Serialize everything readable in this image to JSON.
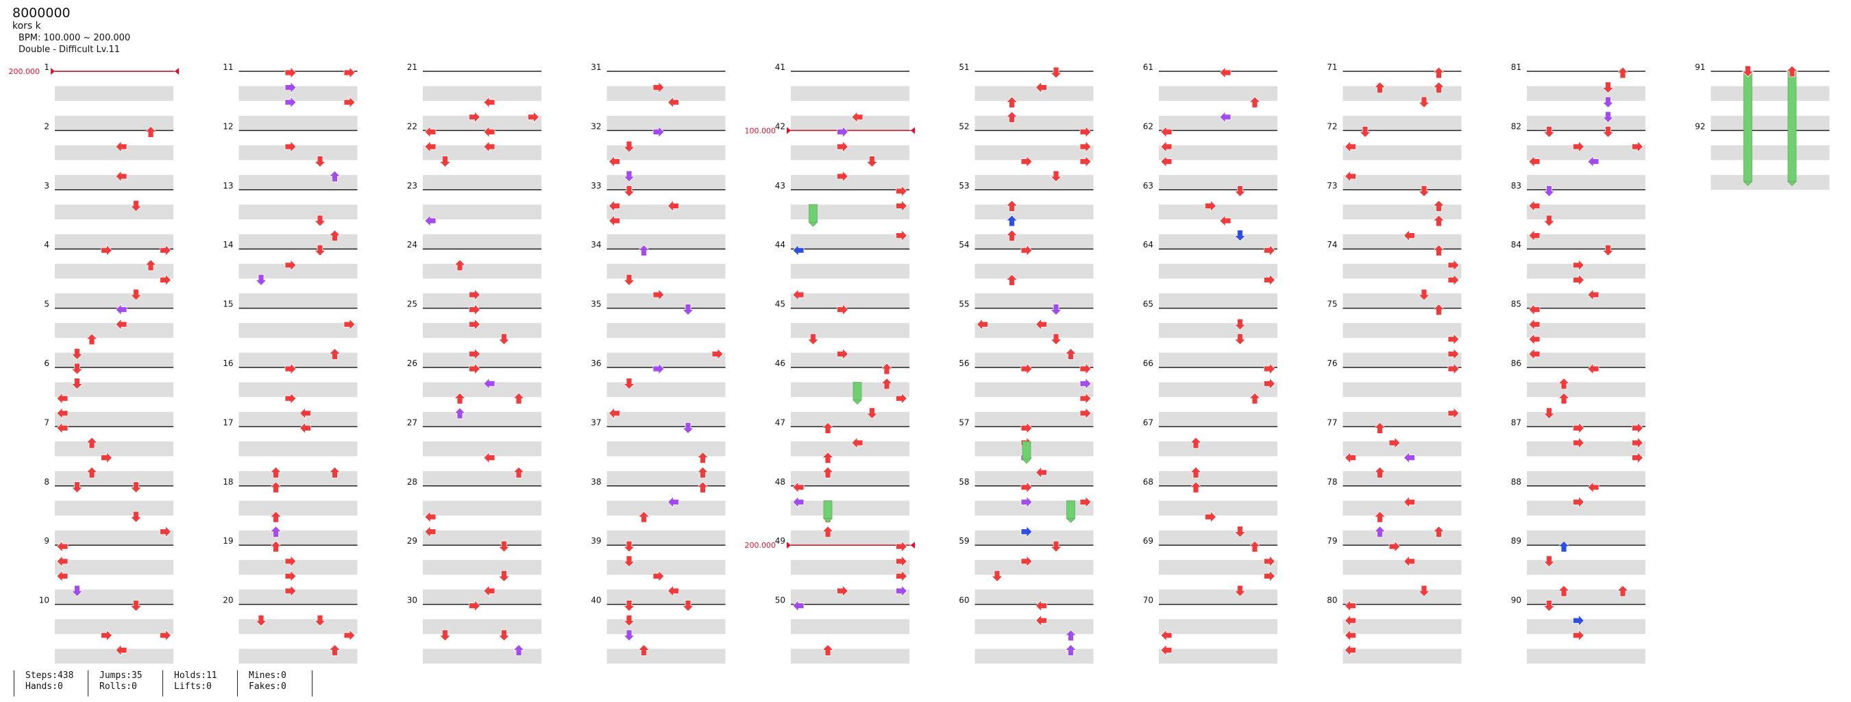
{
  "header": {
    "title": "8000000",
    "artist": "kors k",
    "bpm_text": "BPM: 100.000 ~ 200.000",
    "difficulty_text": "Double - Difficult Lv.11"
  },
  "chart": {
    "total_measures": 92,
    "columns": 10,
    "measures_per_column": 10,
    "lanes": 8,
    "colors": {
      "tap": "#ef3b3b",
      "tap_alt": "#a24bef",
      "tap_blue": "#2f4fe0",
      "hold_body": "#6ed06e",
      "bpm_change": "#e0102a",
      "band": "#dedede",
      "measure_line": "#222222"
    },
    "bpm_changes": [
      {
        "measure": 1,
        "value": "200.000"
      },
      {
        "measure": 42,
        "value": "100.000"
      },
      {
        "measure": 49,
        "value": "200.000"
      }
    ]
  },
  "stats": {
    "steps": "Steps:438",
    "hands": "Hands:0",
    "jumps": "Jumps:35",
    "rolls": "Rolls:0",
    "holds": "Holds:11",
    "lifts": "Lifts:0",
    "mines": "Mines:0",
    "fakes": "Fakes:0"
  }
}
